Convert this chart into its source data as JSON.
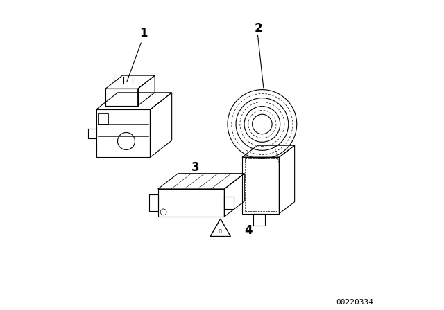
{
  "background_color": "#ffffff",
  "diagram_id": "00220334",
  "label_fontsize": 12,
  "diagram_id_fontsize": 8,
  "fig_width": 6.4,
  "fig_height": 4.48,
  "dpi": 100
}
